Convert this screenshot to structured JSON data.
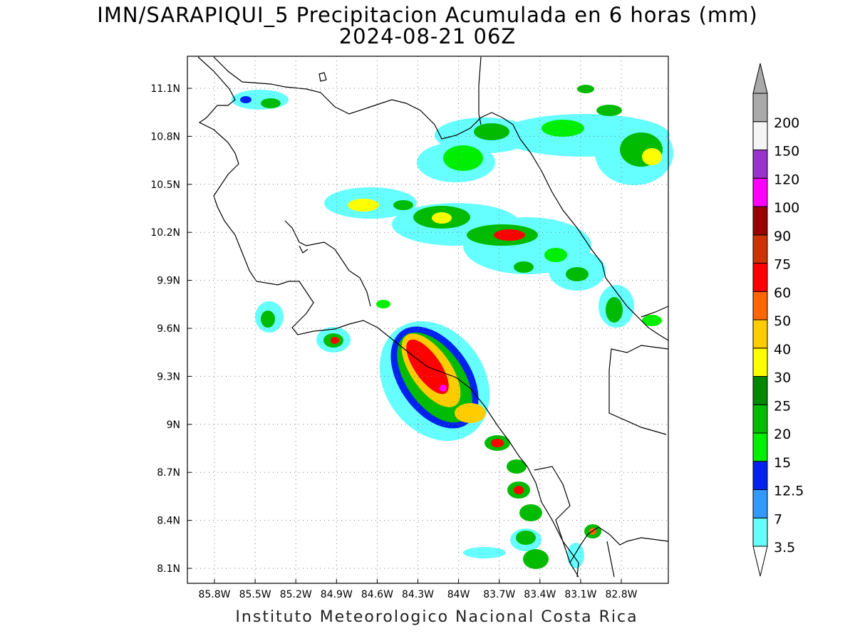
{
  "title_line1": "IMN/SARAPIQUI_5 Precipitacion Acumulada en 6 horas (mm)",
  "title_line2": "2024-08-21 06Z",
  "footer": "Instituto Meteorologico Nacional Costa Rica",
  "map": {
    "lon_labels": [
      "85.8W",
      "85.5W",
      "85.2W",
      "84.9W",
      "84.6W",
      "84.3W",
      "84W",
      "83.7W",
      "83.4W",
      "83.1W",
      "82.8W"
    ],
    "lat_labels": [
      "11.1N",
      "10.8N",
      "10.5N",
      "10.2N",
      "9.9N",
      "9.6N",
      "9.3N",
      "9N",
      "8.7N",
      "8.4N",
      "8.1N"
    ],
    "grid": true
  },
  "colorbar": {
    "labels": [
      "3.5",
      "7",
      "12.5",
      "15",
      "20",
      "25",
      "30",
      "40",
      "50",
      "60",
      "75",
      "90",
      "100",
      "120",
      "150",
      "200"
    ],
    "colors": [
      "#66ffff",
      "#3399ff",
      "#0022ee",
      "#00ee00",
      "#00bb00",
      "#008800",
      "#ffff00",
      "#ffcc00",
      "#ff6600",
      "#ff0000",
      "#cc3300",
      "#990000",
      "#ff00ff",
      "#9933cc",
      "#f5f5f5",
      "#aaaaaa"
    ]
  }
}
